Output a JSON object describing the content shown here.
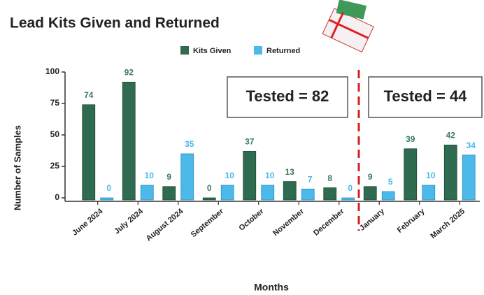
{
  "chart_data": {
    "type": "bar",
    "title": "Lead Kits Given and Returned",
    "x_label": "Months",
    "y_label": "Number of Samples",
    "categories": [
      "June 2024",
      "July 2024",
      "August 2024",
      "September",
      "October",
      "November",
      "December",
      "January",
      "February",
      "March 2025"
    ],
    "series": [
      {
        "name": "Kits Given",
        "color": "#2f6b50",
        "values": [
          74,
          92,
          9,
          0,
          37,
          13,
          8,
          9,
          39,
          42
        ]
      },
      {
        "name": "Returned",
        "color": "#4cb9ea",
        "values": [
          0,
          10,
          35,
          10,
          10,
          7,
          0,
          5,
          10,
          34
        ]
      }
    ],
    "ylim": [
      0,
      100
    ],
    "yticks": [
      0,
      25,
      50,
      75,
      100
    ],
    "annotations": [
      "Tested = 82",
      "Tested = 44"
    ],
    "legend": "top"
  }
}
